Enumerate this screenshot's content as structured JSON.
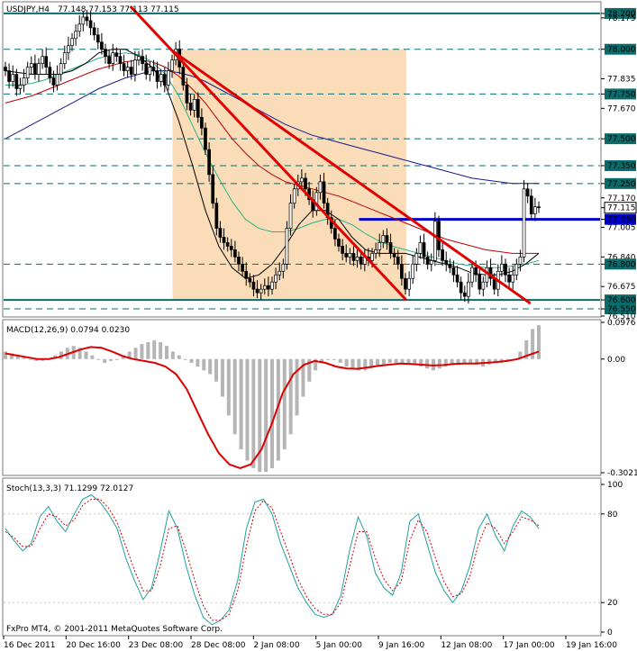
{
  "header": {
    "symbol": "USDJPY,H4",
    "ohlc": "77.148 77.153 77.113 77.115"
  },
  "watermark": "FxPro MT4, © 2001-2011 MetaQuotes Software Corp.",
  "colors": {
    "background": "#ffffff",
    "candle": "#000000",
    "level_line": "#0a6b6b",
    "blue_line": "#0000cc",
    "trend_line": "#e00000",
    "shade": "#fbdcb8",
    "ma_fast": "#000000",
    "ma_mid": "#2ab38a",
    "ma_slow_red": "#c00000",
    "ma_slow_blue": "#1a1a8a",
    "macd_hist": "#b5b5b5",
    "macd_signal": "#dd0000",
    "stoch_main": "#20a0a0",
    "stoch_signal": "#cc0000",
    "current_price_box": "#0000cc"
  },
  "chart_data": [
    {
      "type": "candlestick",
      "title": "USDJPY,H4",
      "x_labels": [
        "16 Dec 2011",
        "20 Dec 16:00",
        "23 Dec 08:00",
        "28 Dec 08:00",
        "2 Jan 08:00",
        "5 Jan 00:00",
        "9 Jan 16:00",
        "12 Jan 08:00",
        "17 Jan 00:00",
        "19 Jan 16:00"
      ],
      "y_ticks": [
        "78.200",
        "78.175",
        "78.000",
        "77.835",
        "77.750",
        "77.670",
        "77.500",
        "77.350",
        "77.250",
        "77.170",
        "77.115",
        "77.050",
        "77.005",
        "76.840",
        "76.800",
        "76.675",
        "76.600",
        "76.550",
        "76.510"
      ],
      "ylim": [
        76.51,
        78.26
      ],
      "current_price": 77.115,
      "horizontal_levels": [
        78.2,
        78.0,
        77.75,
        77.5,
        77.35,
        77.25,
        76.8,
        76.55
      ],
      "solid_levels": [
        78.2,
        76.6
      ],
      "blue_level": 77.05,
      "trend_lines": [
        {
          "from": [
            51,
            78.24
          ],
          "to": [
            162,
            76.6
          ]
        },
        {
          "from": [
            68,
            77.99
          ],
          "to": [
            212,
            76.58
          ]
        }
      ],
      "shaded_region": {
        "x": [
          68,
          162
        ],
        "y": [
          76.6,
          78.0
        ]
      },
      "close_series": [
        77.88,
        77.82,
        77.86,
        77.78,
        77.8,
        77.84,
        77.9,
        77.92,
        77.86,
        77.92,
        77.96,
        77.9,
        77.84,
        77.8,
        77.86,
        77.92,
        77.98,
        78.02,
        78.06,
        78.1,
        78.14,
        78.18,
        78.16,
        78.12,
        78.08,
        78.04,
        78.0,
        77.96,
        77.92,
        77.98,
        77.96,
        77.92,
        77.88,
        77.9,
        77.86,
        77.94,
        77.96,
        77.92,
        77.86,
        77.9,
        77.88,
        77.82,
        77.86,
        77.8,
        77.88,
        77.94,
        78.0,
        77.9,
        77.8,
        77.7,
        77.66,
        77.72,
        77.62,
        77.56,
        77.44,
        77.3,
        77.14,
        77.0,
        76.95,
        76.92,
        76.9,
        76.88,
        76.84,
        76.8,
        76.76,
        76.72,
        76.7,
        76.66,
        76.64,
        76.66,
        76.68,
        76.66,
        76.7,
        76.74,
        76.76,
        76.8,
        77.0,
        77.14,
        77.22,
        77.26,
        77.28,
        77.22,
        77.16,
        77.1,
        77.2,
        77.26,
        77.14,
        77.06,
        77.0,
        76.94,
        76.9,
        76.86,
        76.84,
        76.86,
        76.82,
        76.84,
        76.8,
        76.84,
        76.82,
        76.86,
        76.88,
        76.92,
        76.96,
        76.92,
        76.86,
        76.84,
        76.8,
        76.72,
        76.66,
        76.72,
        76.8,
        76.86,
        76.92,
        76.84,
        76.8,
        76.82,
        77.04,
        76.88,
        76.82,
        76.8,
        76.78,
        76.74,
        76.7,
        76.64,
        76.62,
        76.7,
        76.78,
        76.74,
        76.66,
        76.7,
        76.78,
        76.72,
        76.66,
        76.76,
        76.8,
        76.74,
        76.7,
        76.74,
        76.8,
        76.84,
        77.22,
        77.18,
        77.08,
        77.12,
        77.115
      ],
      "ma_fast": [
        77.88,
        77.87,
        77.86,
        77.86,
        77.86,
        77.88,
        77.92,
        77.98,
        78.0,
        78.0,
        77.96,
        77.9,
        77.8,
        77.6,
        77.36,
        77.1,
        76.9,
        76.78,
        76.72,
        76.74,
        76.8,
        76.9,
        77.02,
        77.1,
        77.1,
        77.05,
        76.95,
        76.88,
        76.86,
        76.86,
        76.86,
        76.84,
        76.82,
        76.8,
        76.78,
        76.75,
        76.74,
        76.74,
        76.76,
        76.8,
        76.86
      ],
      "ma_mid": [
        77.8,
        77.8,
        77.81,
        77.83,
        77.86,
        77.89,
        77.92,
        77.95,
        77.97,
        77.98,
        77.97,
        77.93,
        77.86,
        77.74,
        77.58,
        77.42,
        77.28,
        77.15,
        77.05,
        77.0,
        76.98,
        76.98,
        77.0,
        77.03,
        77.05,
        77.05,
        77.02,
        76.97,
        76.93,
        76.9,
        76.88,
        76.86,
        76.84,
        76.82,
        76.8,
        76.79,
        76.78,
        76.78,
        76.79,
        76.8,
        76.82
      ],
      "ma_slow_red": [
        77.7,
        77.72,
        77.74,
        77.77,
        77.8,
        77.83,
        77.86,
        77.89,
        77.91,
        77.93,
        77.94,
        77.93,
        77.9,
        77.85,
        77.78,
        77.7,
        77.6,
        77.5,
        77.42,
        77.35,
        77.3,
        77.26,
        77.24,
        77.22,
        77.2,
        77.18,
        77.15,
        77.12,
        77.09,
        77.06,
        77.03,
        77.0,
        76.97,
        76.94,
        76.92,
        76.9,
        76.88,
        76.87,
        76.86,
        76.86,
        76.86
      ],
      "ma_slow_blue": [
        77.5,
        77.54,
        77.58,
        77.62,
        77.66,
        77.7,
        77.74,
        77.78,
        77.81,
        77.84,
        77.86,
        77.88,
        77.88,
        77.87,
        77.85,
        77.82,
        77.78,
        77.74,
        77.7,
        77.66,
        77.62,
        77.58,
        77.55,
        77.52,
        77.5,
        77.48,
        77.46,
        77.44,
        77.42,
        77.4,
        77.38,
        77.36,
        77.34,
        77.32,
        77.3,
        77.28,
        77.27,
        77.26,
        77.25,
        77.25,
        77.25
      ]
    },
    {
      "type": "bar",
      "title": "MACD(12,26,9) 0.0794 0.0230",
      "y_ticks": [
        "0.0976",
        "0.00",
        "-0.3021"
      ],
      "ylim": [
        -0.3021,
        0.0976
      ],
      "histogram": [
        0.02,
        0.015,
        0.01,
        0.005,
        0.0,
        -0.005,
        -0.005,
        0.0,
        0.01,
        0.02,
        0.03,
        0.035,
        0.03,
        0.02,
        0.01,
        0.0,
        -0.01,
        -0.005,
        0.0,
        0.01,
        0.02,
        0.03,
        0.04,
        0.045,
        0.05,
        0.045,
        0.035,
        0.02,
        0.01,
        0.0,
        -0.01,
        -0.02,
        -0.03,
        -0.04,
        -0.06,
        -0.1,
        -0.15,
        -0.2,
        -0.24,
        -0.27,
        -0.29,
        -0.3,
        -0.3,
        -0.29,
        -0.27,
        -0.24,
        -0.2,
        -0.15,
        -0.1,
        -0.06,
        -0.03,
        -0.01,
        0.0,
        0.0,
        -0.01,
        -0.02,
        -0.025,
        -0.03,
        -0.03,
        -0.025,
        -0.02,
        -0.015,
        -0.01,
        -0.01,
        -0.01,
        -0.012,
        -0.015,
        -0.02,
        -0.025,
        -0.03,
        -0.025,
        -0.02,
        -0.015,
        -0.015,
        -0.01,
        -0.01,
        -0.015,
        -0.02,
        -0.015,
        -0.01,
        -0.01,
        -0.005,
        0.0,
        0.02,
        0.05,
        0.08,
        0.09
      ],
      "signal": [
        0.015,
        0.01,
        0.005,
        0.0,
        0.0,
        0.005,
        0.015,
        0.025,
        0.032,
        0.03,
        0.02,
        0.008,
        0.0,
        -0.005,
        -0.01,
        -0.02,
        -0.04,
        -0.08,
        -0.14,
        -0.2,
        -0.25,
        -0.28,
        -0.29,
        -0.28,
        -0.24,
        -0.17,
        -0.09,
        -0.04,
        -0.015,
        -0.005,
        -0.01,
        -0.02,
        -0.025,
        -0.026,
        -0.022,
        -0.018,
        -0.015,
        -0.012,
        -0.013,
        -0.015,
        -0.017,
        -0.016,
        -0.013,
        -0.012,
        -0.012,
        -0.01,
        -0.008,
        -0.005,
        0.0,
        0.01,
        0.02
      ]
    },
    {
      "type": "line",
      "title": "Stoch(13,3,3) 71.1299 72.0127",
      "y_ticks": [
        "100",
        "80",
        "20",
        "0"
      ],
      "ylim": [
        0,
        100
      ],
      "main": [
        70,
        62,
        55,
        60,
        78,
        85,
        75,
        68,
        80,
        90,
        93,
        88,
        80,
        70,
        50,
        35,
        22,
        30,
        55,
        82,
        70,
        45,
        25,
        10,
        5,
        8,
        15,
        35,
        70,
        88,
        90,
        80,
        60,
        45,
        30,
        20,
        12,
        10,
        12,
        25,
        55,
        78,
        65,
        40,
        30,
        25,
        40,
        75,
        80,
        60,
        40,
        28,
        20,
        28,
        45,
        70,
        80,
        65,
        55,
        72,
        82,
        78,
        70
      ],
      "signal": [
        68,
        64,
        58,
        58,
        70,
        80,
        78,
        72,
        76,
        86,
        90,
        90,
        84,
        74,
        58,
        42,
        28,
        28,
        45,
        70,
        72,
        55,
        35,
        18,
        8,
        8,
        12,
        28,
        58,
        82,
        89,
        84,
        68,
        52,
        36,
        24,
        16,
        12,
        12,
        20,
        44,
        68,
        68,
        50,
        36,
        28,
        34,
        62,
        76,
        68,
        50,
        34,
        24,
        26,
        38,
        60,
        74,
        70,
        60,
        68,
        78,
        76,
        72
      ]
    }
  ]
}
